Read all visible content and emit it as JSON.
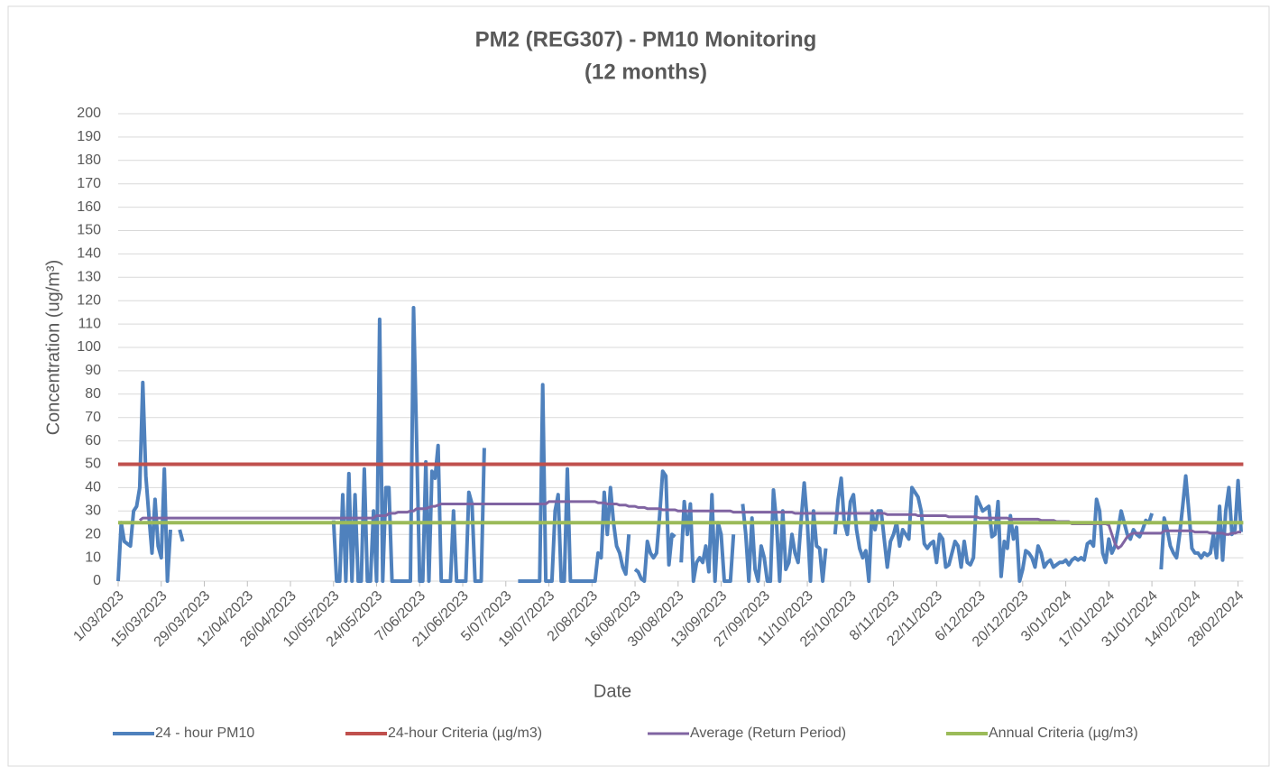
{
  "chart_data": {
    "type": "line",
    "title": "PM2 (REG307) - PM10 Monitoring",
    "subtitle": "(12 months)",
    "x_label": "Date",
    "y_label": "Concentration (ug/m³)",
    "ylim": [
      0,
      200
    ],
    "yticks": [
      0,
      10,
      20,
      30,
      40,
      50,
      60,
      70,
      80,
      90,
      100,
      110,
      120,
      130,
      140,
      150,
      160,
      170,
      180,
      190,
      200
    ],
    "grid": true,
    "legend": "bottom",
    "categories": [
      "1/03/2023",
      null,
      null,
      null,
      null,
      null,
      null,
      null,
      null,
      null,
      null,
      null,
      null,
      null,
      "15/03/2023",
      null,
      null,
      null,
      null,
      null,
      null,
      null,
      null,
      null,
      null,
      null,
      null,
      null,
      "29/03/2023",
      null,
      null,
      null,
      null,
      null,
      null,
      null,
      null,
      null,
      null,
      null,
      null,
      null,
      "12/04/2023",
      null,
      null,
      null,
      null,
      null,
      null,
      null,
      null,
      null,
      null,
      null,
      null,
      null,
      "26/04/2023",
      null,
      null,
      null,
      null,
      null,
      null,
      null,
      null,
      null,
      null,
      null,
      null,
      null,
      "10/05/2023",
      null,
      null,
      null,
      null,
      null,
      null,
      null,
      null,
      null,
      null,
      null,
      null,
      null,
      "24/05/2023",
      null,
      null,
      null,
      null,
      null,
      null,
      null,
      null,
      null,
      null,
      null,
      null,
      null,
      "7/06/2023",
      null,
      null,
      null,
      null,
      null,
      null,
      null,
      null,
      null,
      null,
      null,
      null,
      null,
      "21/06/2023",
      null,
      null,
      null,
      null,
      null,
      null,
      null,
      null,
      null,
      null,
      null,
      null,
      null,
      "5/07/2023",
      null,
      null,
      null,
      null,
      null,
      null,
      null,
      null,
      null,
      null,
      null,
      null,
      null,
      "19/07/2023",
      null,
      null,
      null,
      null,
      null,
      null,
      null,
      null,
      null,
      null,
      null,
      null,
      null,
      "2/08/2023",
      null,
      null,
      null,
      null,
      null,
      null,
      null,
      null,
      null,
      null,
      null,
      null,
      null,
      "16/08/2023",
      null,
      null,
      null,
      null,
      null,
      null,
      null,
      null,
      null,
      null,
      null,
      null,
      null,
      "30/08/2023",
      null,
      null,
      null,
      null,
      null,
      null,
      null,
      null,
      null,
      null,
      null,
      null,
      null,
      "13/09/2023",
      null,
      null,
      null,
      null,
      null,
      null,
      null,
      null,
      null,
      null,
      null,
      null,
      null,
      "27/09/2023",
      null,
      null,
      null,
      null,
      null,
      null,
      null,
      null,
      null,
      null,
      null,
      null,
      null,
      "11/10/2023",
      null,
      null,
      null,
      null,
      null,
      null,
      null,
      null,
      null,
      null,
      null,
      null,
      null,
      "25/10/2023",
      null,
      null,
      null,
      null,
      null,
      null,
      null,
      null,
      null,
      null,
      null,
      null,
      null,
      "8/11/2023",
      null,
      null,
      null,
      null,
      null,
      null,
      null,
      null,
      null,
      null,
      null,
      null,
      null,
      "22/11/2023",
      null,
      null,
      null,
      null,
      null,
      null,
      null,
      null,
      null,
      null,
      null,
      null,
      null,
      "6/12/2023",
      null,
      null,
      null,
      null,
      null,
      null,
      null,
      null,
      null,
      null,
      null,
      null,
      null,
      "20/12/2023",
      null,
      null,
      null,
      null,
      null,
      null,
      null,
      null,
      null,
      null,
      null,
      null,
      null,
      "3/01/2024",
      null,
      null,
      null,
      null,
      null,
      null,
      null,
      null,
      null,
      null,
      null,
      null,
      null,
      "17/01/2024",
      null,
      null,
      null,
      null,
      null,
      null,
      null,
      null,
      null,
      null,
      null,
      null,
      null,
      "31/01/2024",
      null,
      null,
      null,
      null,
      null,
      null,
      null,
      null,
      null,
      null,
      null,
      null,
      null,
      "14/02/2024",
      null,
      null,
      null,
      null,
      null,
      null,
      null,
      null,
      null,
      null,
      null,
      null,
      null,
      "28/02/2024",
      null
    ],
    "series": [
      {
        "name": "24 - hour PM10",
        "color": "#4f81bd",
        "width": 4,
        "values": [
          0,
          25,
          17,
          16,
          15,
          30,
          32,
          40,
          85,
          45,
          28,
          12,
          35,
          15,
          10,
          48,
          0,
          22,
          null,
          null,
          22,
          17,
          null,
          null,
          null,
          null,
          null,
          null,
          null,
          null,
          null,
          null,
          null,
          null,
          null,
          null,
          null,
          null,
          null,
          null,
          null,
          null,
          null,
          null,
          null,
          null,
          null,
          null,
          null,
          null,
          null,
          null,
          null,
          null,
          null,
          null,
          null,
          null,
          null,
          null,
          null,
          null,
          null,
          null,
          null,
          null,
          null,
          null,
          null,
          null,
          26,
          0,
          0,
          37,
          0,
          46,
          0,
          37,
          0,
          0,
          48,
          0,
          0,
          30,
          0,
          112,
          0,
          40,
          40,
          0,
          0,
          0,
          0,
          0,
          0,
          0,
          117,
          60,
          0,
          0,
          51,
          0,
          47,
          44,
          58,
          0,
          0,
          0,
          0,
          30,
          0,
          0,
          0,
          0,
          38,
          33,
          0,
          0,
          0,
          57,
          null,
          null,
          null,
          null,
          null,
          null,
          null,
          null,
          null,
          null,
          0,
          0,
          0,
          0,
          0,
          0,
          0,
          0,
          84,
          0,
          0,
          0,
          30,
          37,
          0,
          0,
          48,
          0,
          0,
          0,
          0,
          0,
          0,
          0,
          0,
          0,
          12,
          10,
          38,
          20,
          40,
          25,
          15,
          12,
          6,
          3,
          20,
          null,
          5,
          4,
          1,
          0,
          17,
          12,
          10,
          12,
          28,
          47,
          45,
          7,
          20,
          19,
          null,
          8,
          34,
          20,
          33,
          0,
          8,
          10,
          8,
          15,
          4,
          37,
          0,
          25,
          20,
          0,
          0,
          0,
          20,
          null,
          null,
          33,
          20,
          0,
          27,
          5,
          0,
          15,
          10,
          0,
          0,
          39,
          25,
          0,
          30,
          5,
          8,
          20,
          12,
          8,
          26,
          42,
          25,
          0,
          30,
          15,
          14,
          0,
          14,
          null,
          null,
          20,
          35,
          44,
          25,
          20,
          34,
          37,
          22,
          14,
          10,
          13,
          0,
          30,
          22,
          30,
          30,
          18,
          6,
          17,
          20,
          25,
          15,
          22,
          20,
          18,
          40,
          38,
          36,
          30,
          16,
          14,
          16,
          17,
          8,
          20,
          18,
          6,
          7,
          12,
          17,
          15,
          6,
          17,
          8,
          7,
          10,
          36,
          33,
          30,
          31,
          32,
          19,
          20,
          34,
          2,
          17,
          14,
          28,
          18,
          23,
          0,
          5,
          13,
          12,
          10,
          6,
          15,
          12,
          6,
          8,
          9,
          6,
          7,
          8,
          8,
          9,
          7,
          9,
          10,
          9,
          10,
          9,
          16,
          17,
          15,
          35,
          30,
          12,
          8,
          18,
          12,
          15,
          22,
          30,
          25,
          20,
          18,
          22,
          20,
          19,
          22,
          26,
          25,
          29,
          null,
          null,
          5,
          27,
          22,
          15,
          12,
          10,
          20,
          32,
          45,
          30,
          14,
          12,
          12,
          10,
          12,
          11,
          12,
          20,
          10,
          32,
          9,
          30,
          40,
          20,
          22,
          43,
          21
        ]
      },
      {
        "name": "24-hour Criteria (µg/m3)",
        "color": "#c0504d",
        "width": 4,
        "value": 50
      },
      {
        "name": "Average (Return Period)",
        "color": "#8064a2",
        "width": 3,
        "values": [
          null,
          null,
          null,
          null,
          null,
          null,
          null,
          26,
          27,
          27,
          27,
          27,
          27,
          27,
          27,
          27,
          27,
          27,
          27,
          27,
          27,
          27,
          27,
          27,
          27,
          27,
          27,
          27,
          27,
          27,
          27,
          27,
          27,
          27,
          27,
          27,
          27,
          27,
          27,
          27,
          27,
          27,
          27,
          27,
          27,
          27,
          27,
          27,
          27,
          27,
          27,
          27,
          27,
          27,
          27,
          27,
          27,
          27,
          27,
          27,
          27,
          27,
          27,
          27,
          27,
          27,
          27,
          27,
          27,
          27,
          27,
          27,
          27,
          27,
          27,
          27,
          27,
          27,
          27,
          27,
          27,
          27,
          27,
          27,
          28,
          28,
          28,
          28,
          29,
          29,
          29,
          29.5,
          29.5,
          29.5,
          29.5,
          30,
          30,
          31,
          31,
          31,
          31,
          31.5,
          32,
          32,
          32.5,
          33,
          33,
          33,
          33,
          33,
          33,
          33,
          33,
          33,
          33,
          33,
          33,
          33,
          33,
          33,
          33,
          33,
          33,
          33,
          33,
          33,
          33,
          33,
          33,
          33,
          33,
          33,
          33,
          33,
          33,
          33,
          33,
          33,
          33,
          33,
          34,
          34,
          34,
          34,
          34,
          34,
          34,
          34,
          34,
          34,
          34,
          34,
          34,
          34,
          34,
          34,
          33.5,
          33.5,
          33.5,
          33,
          33,
          33,
          33,
          32.5,
          32.5,
          32.5,
          32,
          32,
          32,
          31.5,
          31.5,
          31.5,
          31,
          31,
          31,
          31,
          31,
          30.5,
          30.5,
          30.5,
          30.5,
          30.5,
          30,
          30,
          30,
          30,
          30,
          30,
          30,
          30,
          30,
          30,
          30,
          30,
          30,
          30,
          30,
          30,
          30,
          30,
          29.5,
          29.5,
          29.5,
          29.5,
          29.5,
          29.5,
          29.5,
          29.5,
          29.5,
          29.5,
          29.5,
          29.5,
          29.5,
          29.5,
          29.5,
          29.5,
          29.5,
          29.5,
          29.5,
          29.5,
          29,
          29,
          29,
          29,
          29,
          29,
          29,
          29,
          29,
          29,
          29,
          29,
          29,
          29,
          29,
          29,
          29,
          29,
          29,
          29,
          29,
          29,
          29,
          29,
          29,
          29,
          29,
          29,
          29,
          29,
          28.5,
          28.5,
          28.5,
          28.5,
          28.5,
          28.5,
          28.5,
          28.5,
          28.5,
          28.5,
          28,
          28,
          28,
          28,
          28,
          28,
          28,
          28,
          28,
          28,
          27.5,
          27.5,
          27.5,
          27.5,
          27.5,
          27.5,
          27.5,
          27.5,
          27.5,
          27.5,
          27,
          27,
          27,
          27,
          27,
          27,
          27,
          27,
          27,
          27,
          26.5,
          26.5,
          26.5,
          26.5,
          26.5,
          26.5,
          26.5,
          26.5,
          26.5,
          26.5,
          26,
          26,
          26,
          26,
          26,
          25.5,
          25.5,
          25.5,
          25.5,
          25.5,
          24.5,
          24.5,
          24.5,
          24.5,
          24.5,
          24.5,
          24.5,
          24.5,
          24.5,
          24.5,
          24.5,
          24.5,
          24,
          20,
          16,
          14,
          15,
          17,
          19,
          20,
          20.5,
          20.5,
          20.5,
          20.5,
          20.5,
          20.5,
          20.5,
          20.5,
          20.5,
          20.5,
          21.5,
          21.5,
          21.5,
          21.5,
          21.5,
          21.5,
          21.5,
          21.5,
          21.5,
          21.5,
          21,
          21,
          21,
          21,
          21,
          20.5,
          20.5,
          20.5,
          20.5,
          20.5,
          20,
          20,
          20.5,
          20.5,
          21,
          21
        ]
      },
      {
        "name": "Annual Criteria (µg/m3)",
        "color": "#9bbb59",
        "width": 4,
        "value": 25
      }
    ]
  }
}
